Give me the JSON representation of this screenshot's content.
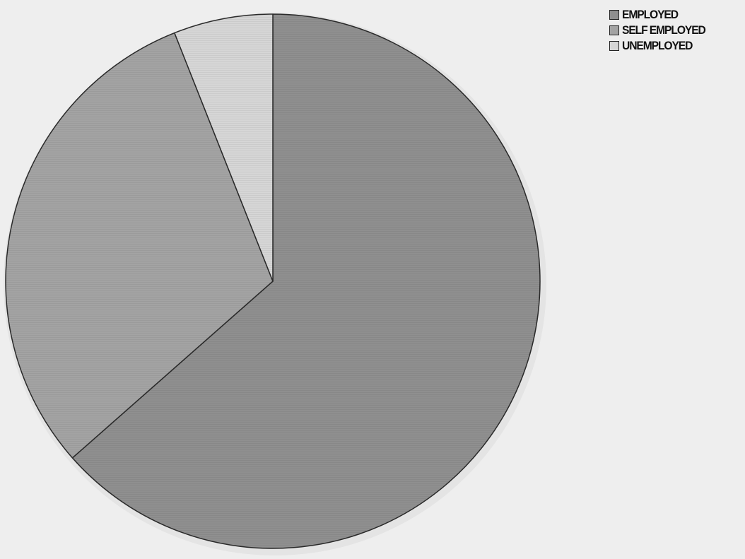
{
  "chart_data": {
    "type": "pie",
    "title": "",
    "slices": [
      {
        "label": "EMPLOYED",
        "value": 63.5,
        "color": "#8f8f8f"
      },
      {
        "label": "SELF EMPLOYED",
        "value": 30.5,
        "color": "#a3a3a3"
      },
      {
        "label": "UNEMPLOYED",
        "value": 6.0,
        "color": "#d6d6d6"
      }
    ],
    "start_angle": "12 o'clock",
    "direction": "clockwise",
    "legend_position": "top-right"
  },
  "legend": {
    "items": [
      {
        "label": "EMPLOYED",
        "color": "#8f8f8f"
      },
      {
        "label": "SELF EMPLOYED",
        "color": "#a3a3a3"
      },
      {
        "label": "UNEMPLOYED",
        "color": "#d6d6d6"
      }
    ]
  }
}
